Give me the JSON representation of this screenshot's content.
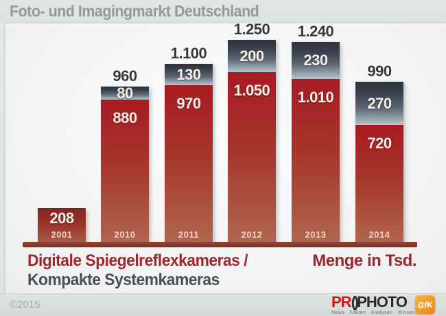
{
  "title": "Foto- und Imagingmarkt Deutschland",
  "chart_data": {
    "type": "bar",
    "subtype": "stacked",
    "categories": [
      "2001",
      "2010",
      "2011",
      "2012",
      "2013",
      "2014"
    ],
    "series": [
      {
        "name": "Serie 1 (rotes Segment, unten)",
        "values": [
          208,
          880,
          970,
          1050,
          1010,
          720
        ],
        "labels": [
          "208",
          "880",
          "970",
          "1.050",
          "1.010",
          "720"
        ],
        "color": "#a91b22"
      },
      {
        "name": "Serie 2 (graues Segment, oben)",
        "values": [
          0,
          80,
          130,
          200,
          230,
          270
        ],
        "labels": [
          "",
          "80",
          "130",
          "200",
          "230",
          "270"
        ],
        "color": "#4e5866"
      }
    ],
    "totals": {
      "values": [
        208,
        960,
        1100,
        1250,
        1240,
        990
      ],
      "labels": [
        "",
        "960",
        "1.100",
        "1.250",
        "1.240",
        "990"
      ]
    },
    "title": "Foto- und Imagingmarkt Deutschland",
    "xlabel": "",
    "ylabel": "Menge in Tsd.",
    "ylim": [
      0,
      1300
    ],
    "grid": false,
    "legend": "none",
    "footnote_line1": "Digitale Spiegelreflexkameras /",
    "footnote_line2": "Kompakte Systemkameras",
    "unit_label": "Menge in Tsd."
  },
  "footer": {
    "copyright": "©2015",
    "prophoto": {
      "part_pr": "PR",
      "part_o": "()",
      "part_photo": "PHOTO",
      "tagline": "News · Fakten · Analysen · Wissen"
    },
    "gfk_label": "GfK"
  },
  "colors": {
    "red_segment": "#a91b22",
    "gray_segment_dark": "#2c313b",
    "gray_segment_light": "#bac5cc",
    "baseline_red": "#8d3b2d",
    "footnote_red": "#9c272e",
    "footnote_slate": "#4c4e57",
    "title_gray": "#96989a",
    "gfk_orange": "#f19a28",
    "prophoto_red": "#c3191e"
  }
}
